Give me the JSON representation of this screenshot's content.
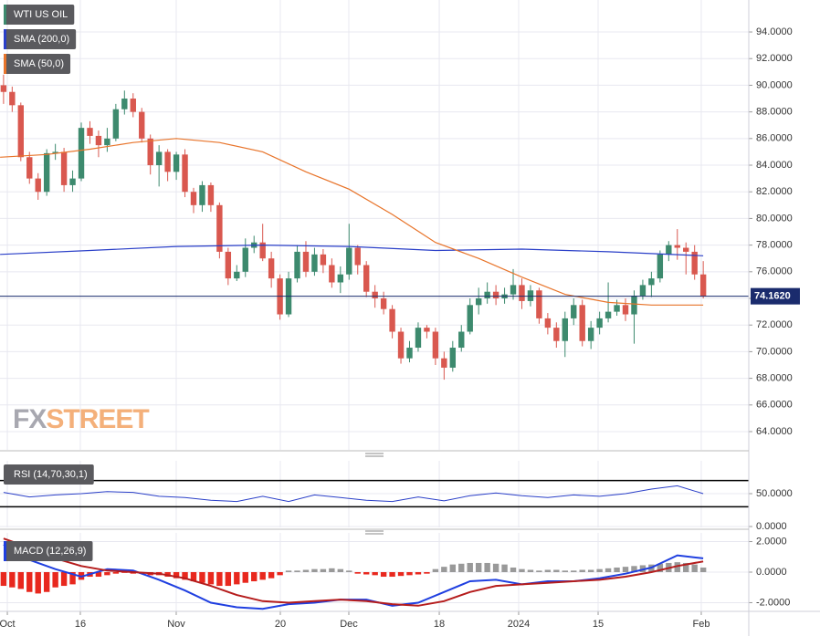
{
  "chart_data": [
    {
      "type": "candlestick",
      "watermark": [
        "FX",
        "STREET"
      ],
      "xlim": [
        -0.41,
        86.27
      ],
      "ylim": [
        62.63,
        96.4
      ],
      "yticks": [
        {
          "value": 64,
          "label": "64.0000"
        },
        {
          "value": 66,
          "label": "66.0000"
        },
        {
          "value": 68,
          "label": "68.0000"
        },
        {
          "value": 70,
          "label": "70.0000"
        },
        {
          "value": 72,
          "label": "72.0000"
        },
        {
          "value": 74,
          "label": "74.0000"
        },
        {
          "value": 76,
          "label": "76.0000"
        },
        {
          "value": 78,
          "label": "78.0000"
        },
        {
          "value": 80,
          "label": "80.0000"
        },
        {
          "value": 82,
          "label": "82.0000"
        },
        {
          "value": 84,
          "label": "84.0000"
        },
        {
          "value": 86,
          "label": "86.0000"
        },
        {
          "value": 88,
          "label": "88.0000"
        },
        {
          "value": 90,
          "label": "90.0000"
        },
        {
          "value": 92,
          "label": "92.0000"
        },
        {
          "value": 94,
          "label": "94.0000"
        }
      ],
      "current_price": {
        "value": 74.162,
        "label": "74.1620"
      },
      "grid": true,
      "series": [
        {
          "name": "WTI US OIL",
          "color": "#3d8a6e",
          "down_color": "#d9584f",
          "values": [
            [
              90.0,
              90.8,
              88.6,
              89.5
            ],
            [
              89.5,
              89.9,
              88.0,
              88.5
            ],
            [
              88.5,
              88.7,
              84.3,
              84.6
            ],
            [
              84.6,
              85.0,
              82.6,
              83.0
            ],
            [
              83.0,
              83.4,
              81.4,
              82.0
            ],
            [
              82.0,
              85.2,
              81.7,
              84.9
            ],
            [
              84.9,
              85.6,
              84.4,
              85.0
            ],
            [
              85.0,
              85.3,
              82.0,
              82.5
            ],
            [
              82.5,
              83.6,
              82.0,
              83.0
            ],
            [
              83.0,
              87.2,
              82.8,
              86.8
            ],
            [
              86.8,
              87.3,
              85.6,
              86.2
            ],
            [
              86.2,
              86.6,
              84.6,
              85.5
            ],
            [
              85.5,
              86.8,
              85.0,
              86.0
            ],
            [
              86.0,
              88.6,
              85.8,
              88.2
            ],
            [
              88.2,
              89.6,
              87.8,
              89.0
            ],
            [
              89.0,
              89.4,
              87.6,
              88.0
            ],
            [
              88.0,
              88.3,
              85.7,
              86.0
            ],
            [
              86.0,
              86.3,
              83.3,
              84.0
            ],
            [
              84.0,
              85.5,
              82.4,
              85.0
            ],
            [
              85.0,
              85.2,
              82.8,
              83.5
            ],
            [
              83.5,
              85.0,
              82.9,
              84.8
            ],
            [
              84.8,
              85.2,
              81.6,
              82.0
            ],
            [
              82.0,
              82.3,
              80.4,
              81.0
            ],
            [
              81.0,
              82.8,
              80.5,
              82.5
            ],
            [
              82.5,
              82.7,
              80.5,
              81.0
            ],
            [
              81.0,
              81.2,
              77.0,
              77.5
            ],
            [
              77.5,
              77.8,
              75.0,
              75.5
            ],
            [
              75.5,
              76.5,
              75.3,
              76.0
            ],
            [
              76.0,
              78.5,
              75.6,
              77.8
            ],
            [
              77.8,
              78.7,
              77.4,
              78.2
            ],
            [
              78.2,
              79.6,
              76.8,
              77.0
            ],
            [
              77.0,
              77.5,
              74.8,
              75.5
            ],
            [
              75.5,
              75.8,
              72.4,
              72.8
            ],
            [
              72.8,
              76.0,
              72.6,
              75.5
            ],
            [
              75.5,
              78.0,
              75.2,
              77.5
            ],
            [
              77.5,
              78.3,
              75.6,
              76.0
            ],
            [
              76.0,
              77.8,
              75.7,
              77.3
            ],
            [
              77.3,
              77.7,
              75.9,
              76.5
            ],
            [
              76.5,
              77.0,
              74.8,
              75.2
            ],
            [
              75.2,
              76.4,
              74.4,
              75.8
            ],
            [
              75.8,
              79.6,
              75.4,
              77.8
            ],
            [
              77.8,
              78.0,
              75.8,
              76.5
            ],
            [
              76.5,
              76.8,
              74.1,
              74.5
            ],
            [
              74.5,
              75.0,
              73.3,
              74.0
            ],
            [
              74.0,
              74.5,
              72.8,
              73.2
            ],
            [
              73.2,
              73.5,
              71.0,
              71.5
            ],
            [
              71.5,
              71.8,
              69.1,
              69.5
            ],
            [
              69.5,
              70.8,
              69.2,
              70.3
            ],
            [
              70.3,
              72.2,
              70.0,
              71.8
            ],
            [
              71.8,
              72.0,
              71.0,
              71.5
            ],
            [
              71.5,
              71.8,
              69.0,
              69.5
            ],
            [
              69.5,
              70.0,
              67.9,
              68.8
            ],
            [
              68.8,
              70.8,
              68.5,
              70.3
            ],
            [
              70.3,
              72.0,
              70.0,
              71.5
            ],
            [
              71.5,
              74.0,
              71.3,
              73.5
            ],
            [
              73.5,
              74.8,
              72.8,
              74.0
            ],
            [
              74.0,
              75.2,
              73.6,
              74.5
            ],
            [
              74.5,
              75.0,
              73.5,
              74.0
            ],
            [
              74.0,
              74.8,
              73.6,
              74.3
            ],
            [
              74.3,
              76.2,
              73.9,
              75.0
            ],
            [
              75.0,
              75.5,
              73.2,
              73.8
            ],
            [
              73.8,
              75.0,
              73.4,
              74.6
            ],
            [
              74.6,
              74.8,
              72.1,
              72.5
            ],
            [
              72.5,
              72.9,
              71.3,
              71.8
            ],
            [
              71.8,
              72.2,
              70.3,
              70.8
            ],
            [
              70.8,
              73.0,
              69.6,
              72.5
            ],
            [
              72.5,
              74.0,
              72.0,
              73.5
            ],
            [
              73.5,
              73.9,
              70.4,
              70.8
            ],
            [
              70.8,
              72.3,
              70.2,
              71.8
            ],
            [
              71.8,
              73.0,
              71.3,
              72.5
            ],
            [
              72.5,
              75.2,
              72.2,
              73.0
            ],
            [
              73.0,
              73.9,
              72.7,
              73.5
            ],
            [
              73.5,
              74.0,
              72.3,
              72.8
            ],
            [
              72.8,
              74.6,
              70.6,
              74.2
            ],
            [
              74.2,
              75.4,
              73.9,
              75.0
            ],
            [
              75.0,
              76.0,
              74.1,
              75.5
            ],
            [
              75.5,
              77.6,
              75.2,
              77.3
            ],
            [
              77.3,
              78.3,
              76.8,
              78.0
            ],
            [
              78.0,
              79.2,
              76.9,
              77.8
            ],
            [
              77.8,
              78.2,
              75.8,
              77.5
            ],
            [
              77.5,
              78.0,
              75.4,
              75.8
            ],
            [
              75.8,
              76.8,
              74.0,
              74.16
            ]
          ]
        },
        {
          "name": "SMA (200,0)",
          "color": "#2a3fc8",
          "x": [
            -0.4,
            10,
            20,
            30,
            40,
            50,
            60,
            70,
            81
          ],
          "values": [
            77.3,
            77.6,
            77.9,
            78.0,
            77.9,
            77.6,
            77.7,
            77.5,
            77.2
          ]
        },
        {
          "name": "SMA (50,0)",
          "color": "#e8742a",
          "x": [
            -0.4,
            5,
            10,
            15,
            20,
            25,
            30,
            35,
            40,
            45,
            50,
            55,
            60,
            65,
            70,
            75,
            81
          ],
          "values": [
            84.6,
            84.8,
            85.2,
            85.7,
            86.0,
            85.7,
            85.0,
            83.5,
            82.2,
            80.3,
            78.2,
            77.0,
            75.6,
            74.3,
            73.7,
            73.5,
            73.5
          ]
        }
      ]
    },
    {
      "type": "line",
      "title": "RSI (14,70,30,1)",
      "xlim": [
        -0.41,
        86.27
      ],
      "ylim": [
        -1.39,
        100
      ],
      "yticks": [
        {
          "value": 0,
          "label": "0.0000"
        },
        {
          "value": 50,
          "label": "50.0000"
        }
      ],
      "levels": [
        70,
        30
      ],
      "series": [
        {
          "color": "#2a3fc8",
          "x": [
            0,
            3,
            6,
            9,
            12,
            15,
            18,
            21,
            24,
            27,
            30,
            33,
            36,
            39,
            42,
            45,
            48,
            51,
            54,
            57,
            60,
            63,
            66,
            69,
            72,
            75,
            78,
            81
          ],
          "values": [
            52,
            45,
            48,
            50,
            53,
            52,
            46,
            44,
            40,
            38,
            46,
            38,
            48,
            44,
            40,
            38,
            45,
            39,
            47,
            51,
            47,
            44,
            48,
            46,
            50,
            57,
            62,
            50
          ]
        }
      ]
    },
    {
      "type": "macd",
      "title": "MACD (12,26,9)",
      "xlim": [
        -0.41,
        86.27
      ],
      "ylim": [
        -2.57,
        2.57
      ],
      "yticks": [
        {
          "value": -2,
          "label": "-2.0000"
        },
        {
          "value": 0,
          "label": "0.0000"
        },
        {
          "value": 2,
          "label": "2.0000"
        }
      ],
      "xticks": [
        {
          "value": 0.44,
          "label": "Oct"
        },
        {
          "value": 8.89,
          "label": "16"
        },
        {
          "value": 19.99,
          "label": "Nov"
        },
        {
          "value": 32.04,
          "label": "20"
        },
        {
          "value": 39.97,
          "label": "Dec"
        },
        {
          "value": 50.44,
          "label": "18"
        },
        {
          "value": 59.63,
          "label": "2024"
        },
        {
          "value": 68.83,
          "label": "15"
        },
        {
          "value": 80.77,
          "label": "Feb"
        }
      ],
      "histogram": {
        "colors": [
          "#999999",
          "#e8281e"
        ],
        "values": [
          -0.9,
          -1.0,
          -1.1,
          -1.3,
          -1.4,
          -1.3,
          -1.0,
          -0.9,
          -0.8,
          -0.5,
          -0.3,
          -0.3,
          -0.2,
          -0.1,
          -0.05,
          -0.1,
          -0.1,
          -0.2,
          -0.2,
          -0.3,
          -0.4,
          -0.5,
          -0.6,
          -0.7,
          -0.8,
          -0.9,
          -0.9,
          -0.8,
          -0.7,
          -0.6,
          -0.5,
          -0.4,
          -0.2,
          0.1,
          0.1,
          0.15,
          0.2,
          0.2,
          0.25,
          0.2,
          0.1,
          -0.1,
          -0.15,
          -0.2,
          -0.3,
          -0.3,
          -0.25,
          -0.2,
          -0.15,
          -0.1,
          0.2,
          0.35,
          0.5,
          0.55,
          0.6,
          0.6,
          0.6,
          0.55,
          0.5,
          0.3,
          0.2,
          0.15,
          0.1,
          0.15,
          0.15,
          0.1,
          0.1,
          0.15,
          0.15,
          0.2,
          0.25,
          0.3,
          0.35,
          0.4,
          0.45,
          0.5,
          0.55,
          0.6,
          0.65,
          0.6,
          0.5,
          0.3
        ]
      },
      "series": [
        {
          "color": "#1f3fe0",
          "x": [
            0,
            3,
            6,
            9,
            12,
            15,
            18,
            21,
            24,
            27,
            30,
            33,
            36,
            39,
            42,
            45,
            48,
            51,
            54,
            57,
            60,
            63,
            66,
            69,
            72,
            75,
            78,
            81
          ],
          "values": [
            1.8,
            0.8,
            0.2,
            -0.3,
            0.2,
            0.1,
            -0.5,
            -1.2,
            -2.0,
            -2.3,
            -2.4,
            -2.1,
            -2.0,
            -1.8,
            -1.8,
            -2.2,
            -2.0,
            -1.3,
            -0.6,
            -0.5,
            -0.8,
            -0.6,
            -0.6,
            -0.4,
            -0.1,
            0.3,
            1.1,
            0.9
          ]
        },
        {
          "color": "#b51c1c",
          "x": [
            0,
            3,
            6,
            9,
            12,
            15,
            18,
            21,
            24,
            27,
            30,
            33,
            36,
            39,
            42,
            45,
            48,
            51,
            54,
            57,
            60,
            63,
            66,
            69,
            72,
            75,
            78,
            81
          ],
          "values": [
            2.2,
            1.6,
            0.9,
            0.4,
            0.1,
            0.0,
            -0.1,
            -0.4,
            -0.9,
            -1.5,
            -1.9,
            -2.0,
            -1.9,
            -1.8,
            -1.9,
            -2.1,
            -2.2,
            -1.9,
            -1.3,
            -0.9,
            -0.8,
            -0.7,
            -0.6,
            -0.5,
            -0.3,
            0.0,
            0.4,
            0.7
          ]
        }
      ]
    }
  ]
}
